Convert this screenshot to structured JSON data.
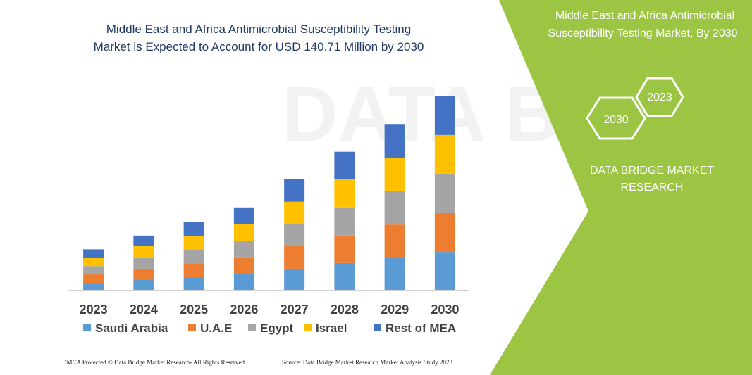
{
  "chart_data": {
    "type": "stacked_bar",
    "title": [
      "Middle East and Africa Antimicrobial Susceptibility Testing",
      "Market is Expected to Account for USD 140.71 Million by 2030"
    ],
    "categories": [
      "2023",
      "2024",
      "2025",
      "2026",
      "2027",
      "2028",
      "2029",
      "2030"
    ],
    "series": [
      {
        "name": "Saudi Arabia",
        "color": "#5b9bd5",
        "values": [
          5.1,
          7.2,
          9.2,
          11.3,
          15.4,
          19.5,
          23.5,
          27.6
        ]
      },
      {
        "name": "U.A.E",
        "color": "#ed7d31",
        "values": [
          6.1,
          8.2,
          10.2,
          12.3,
          16.4,
          20.0,
          24.0,
          28.2
        ]
      },
      {
        "name": "Egypt",
        "color": "#a5a5a5",
        "values": [
          6.1,
          8.2,
          10.2,
          11.8,
          15.9,
          20.5,
          24.6,
          28.7
        ]
      },
      {
        "name": "Israel",
        "color": "#ffc000",
        "values": [
          6.1,
          8.2,
          9.7,
          12.3,
          16.4,
          20.5,
          24.0,
          28.2
        ]
      },
      {
        "name": "Rest of MEA",
        "color": "#4472c4",
        "values": [
          6.1,
          7.7,
          10.2,
          12.3,
          16.4,
          20.0,
          24.6,
          28.2
        ]
      }
    ],
    "ylim": [
      0,
      150
    ]
  },
  "side_panel": {
    "title": [
      "Middle East and Africa Antimicrobial",
      "Susceptibility Testing Market, By 2030"
    ],
    "badges": [
      "2023",
      "2030"
    ],
    "brand": [
      "DATA BRIDGE MARKET",
      "RESEARCH"
    ]
  },
  "footer": {
    "left": "DMCA Protected © Data Bridge Market Research- All Rights Reserved.",
    "right": "Source: Data Bridge Market Research  Market Analysis Study 2023"
  }
}
